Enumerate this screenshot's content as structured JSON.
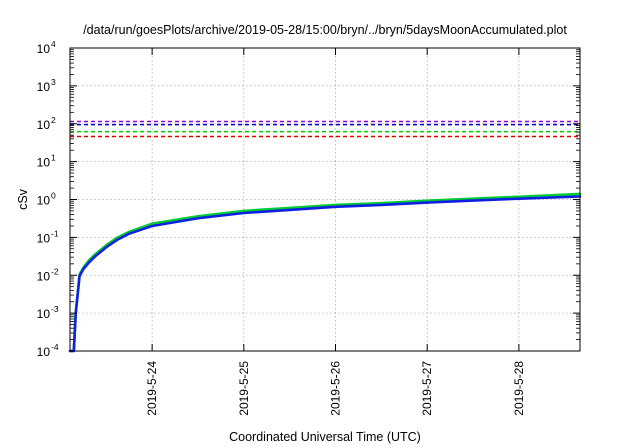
{
  "chart_data": {
    "type": "line",
    "title": "/data/run/goesPlots/archive/2019-05-28/15:00/bryn/../bryn/5daysMoonAccumulated.plot",
    "xlabel": "Coordinated Universal Time (UTC)",
    "ylabel": "cSv",
    "yscale": "log",
    "ylim": [
      0.0001,
      10000
    ],
    "xlim": [
      "2019-05-23T02:30",
      "2019-05-28T16:00"
    ],
    "grid": true,
    "legend": "none",
    "y_ticks": [
      {
        "base": "10",
        "exp": "-4",
        "value": 0.0001
      },
      {
        "base": "10",
        "exp": "-3",
        "value": 0.001
      },
      {
        "base": "10",
        "exp": "-2",
        "value": 0.01
      },
      {
        "base": "10",
        "exp": "-1",
        "value": 0.1
      },
      {
        "base": "10",
        "exp": "0",
        "value": 1
      },
      {
        "base": "10",
        "exp": "1",
        "value": 10
      },
      {
        "base": "10",
        "exp": "2",
        "value": 100
      },
      {
        "base": "10",
        "exp": "3",
        "value": 1000
      },
      {
        "base": "10",
        "exp": "4",
        "value": 10000
      }
    ],
    "x_ticks": [
      {
        "label": "2019-5-24",
        "value": "2019-05-24T00:00"
      },
      {
        "label": "2019-5-25",
        "value": "2019-05-25T00:00"
      },
      {
        "label": "2019-5-26",
        "value": "2019-05-26T00:00"
      },
      {
        "label": "2019-5-27",
        "value": "2019-05-27T00:00"
      },
      {
        "label": "2019-5-28",
        "value": "2019-05-28T00:00"
      }
    ],
    "thresholds": [
      {
        "value": 115,
        "color": "#9400d3"
      },
      {
        "value": 95,
        "color": "#0000cd"
      },
      {
        "value": 62,
        "color": "#00cc00"
      },
      {
        "value": 46,
        "color": "#e00000"
      }
    ],
    "series": [
      {
        "color": "#00cc33",
        "x": [
          "2019-05-23T02:30",
          "2019-05-23T03:30",
          "2019-05-23T04:00",
          "2019-05-23T05:00",
          "2019-05-23T06:00",
          "2019-05-23T07:30",
          "2019-05-23T09:00",
          "2019-05-23T12:00",
          "2019-05-23T15:00",
          "2019-05-23T18:00",
          "2019-05-24T00:00",
          "2019-05-24T12:00",
          "2019-05-25T00:00",
          "2019-05-25T12:00",
          "2019-05-26T00:00",
          "2019-05-26T12:00",
          "2019-05-27T00:00",
          "2019-05-27T12:00",
          "2019-05-28T00:00",
          "2019-05-28T16:00"
        ],
        "y": [
          0.0001,
          0.0001,
          0.001,
          0.0105,
          0.016,
          0.025,
          0.035,
          0.062,
          0.1,
          0.14,
          0.23,
          0.36,
          0.5,
          0.6,
          0.72,
          0.8,
          0.93,
          1.05,
          1.18,
          1.4
        ]
      },
      {
        "color": "#1020e0",
        "x": [
          "2019-05-23T02:30",
          "2019-05-23T03:30",
          "2019-05-23T04:00",
          "2019-05-23T05:00",
          "2019-05-23T06:00",
          "2019-05-23T07:30",
          "2019-05-23T09:00",
          "2019-05-23T12:00",
          "2019-05-23T15:00",
          "2019-05-23T18:00",
          "2019-05-24T00:00",
          "2019-05-24T12:00",
          "2019-05-25T00:00",
          "2019-05-25T12:00",
          "2019-05-26T00:00",
          "2019-05-26T12:00",
          "2019-05-27T00:00",
          "2019-05-27T12:00",
          "2019-05-28T00:00",
          "2019-05-28T16:00"
        ],
        "y": [
          0.0001,
          0.0001,
          0.001,
          0.0095,
          0.0145,
          0.022,
          0.031,
          0.055,
          0.088,
          0.125,
          0.2,
          0.32,
          0.44,
          0.53,
          0.64,
          0.72,
          0.83,
          0.94,
          1.05,
          1.2
        ]
      }
    ]
  }
}
